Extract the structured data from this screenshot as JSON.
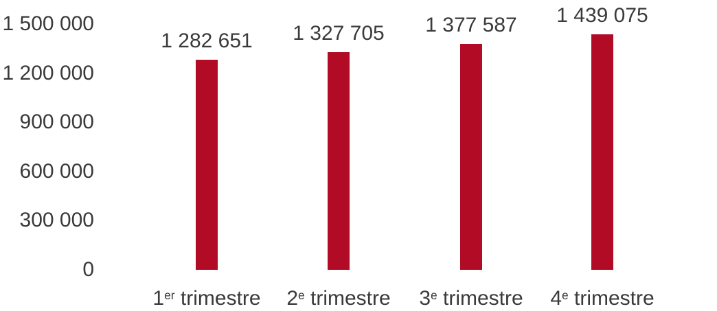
{
  "chart_data": {
    "type": "bar",
    "categories": [
      {
        "prefix": "1",
        "sup": "er",
        "rest": " trimestre",
        "full": "1er trimestre"
      },
      {
        "prefix": "2",
        "sup": "e",
        "rest": " trimestre",
        "full": "2e trimestre"
      },
      {
        "prefix": "3",
        "sup": "e",
        "rest": " trimestre",
        "full": "3e trimestre"
      },
      {
        "prefix": "4",
        "sup": "e",
        "rest": " trimestre",
        "full": "4e trimestre"
      }
    ],
    "values": [
      1282651,
      1327705,
      1377587,
      1439075
    ],
    "value_labels": [
      "1 282 651",
      "1 327 705",
      "1 377 587",
      "1 439 075"
    ],
    "y_ticks": [
      0,
      300000,
      600000,
      900000,
      1200000,
      1500000
    ],
    "y_tick_labels": [
      "0",
      "300 000",
      "600 000",
      "900 000",
      "1 200 000",
      "1 500 000"
    ],
    "ylim": [
      0,
      1500000
    ],
    "xlabel": "",
    "ylabel": "",
    "title": "",
    "grid": false,
    "legend": false,
    "bar_color": "#B10B25",
    "text_color": "#3A3A3A",
    "background_color": "#FFFFFF"
  }
}
